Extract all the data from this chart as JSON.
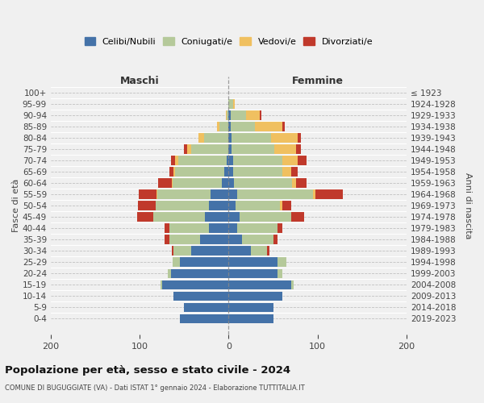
{
  "age_groups": [
    "0-4",
    "5-9",
    "10-14",
    "15-19",
    "20-24",
    "25-29",
    "30-34",
    "35-39",
    "40-44",
    "45-49",
    "50-54",
    "55-59",
    "60-64",
    "65-69",
    "70-74",
    "75-79",
    "80-84",
    "85-89",
    "90-94",
    "95-99",
    "100+"
  ],
  "birth_years": [
    "2019-2023",
    "2014-2018",
    "2009-2013",
    "2004-2008",
    "1999-2003",
    "1994-1998",
    "1989-1993",
    "1984-1988",
    "1979-1983",
    "1974-1978",
    "1969-1973",
    "1964-1968",
    "1959-1963",
    "1954-1958",
    "1949-1953",
    "1944-1948",
    "1939-1943",
    "1934-1938",
    "1929-1933",
    "1924-1928",
    "≤ 1923"
  ],
  "male": {
    "celibi": [
      55,
      50,
      62,
      75,
      65,
      55,
      42,
      32,
      22,
      27,
      22,
      20,
      8,
      5,
      2,
      0,
      0,
      0,
      0,
      0,
      0
    ],
    "coniugati": [
      0,
      0,
      0,
      2,
      3,
      8,
      20,
      35,
      45,
      58,
      60,
      60,
      55,
      55,
      55,
      42,
      28,
      10,
      2,
      0,
      0
    ],
    "vedovi": [
      0,
      0,
      0,
      0,
      0,
      0,
      0,
      0,
      0,
      0,
      0,
      1,
      1,
      2,
      3,
      5,
      6,
      3,
      1,
      0,
      0
    ],
    "divorziati": [
      0,
      0,
      0,
      0,
      0,
      0,
      2,
      5,
      5,
      18,
      20,
      20,
      15,
      5,
      5,
      3,
      0,
      0,
      0,
      0,
      0
    ]
  },
  "female": {
    "nubili": [
      50,
      50,
      60,
      70,
      55,
      55,
      25,
      15,
      10,
      12,
      8,
      10,
      6,
      5,
      5,
      3,
      3,
      2,
      2,
      0,
      0
    ],
    "coniugate": [
      0,
      0,
      0,
      3,
      5,
      10,
      18,
      35,
      45,
      58,
      50,
      85,
      65,
      55,
      55,
      48,
      45,
      28,
      18,
      5,
      0
    ],
    "vedove": [
      0,
      0,
      0,
      0,
      0,
      0,
      0,
      0,
      0,
      0,
      2,
      3,
      5,
      10,
      18,
      25,
      30,
      30,
      15,
      2,
      0
    ],
    "divorziate": [
      0,
      0,
      0,
      0,
      0,
      0,
      3,
      5,
      5,
      15,
      10,
      30,
      12,
      8,
      10,
      5,
      3,
      3,
      2,
      0,
      0
    ]
  },
  "colors": {
    "celibi": "#4472a8",
    "coniugati": "#b5c99a",
    "vedovi": "#f0c060",
    "divorziati": "#c0392b"
  },
  "xlim": [
    -200,
    200
  ],
  "xticks": [
    -200,
    -100,
    0,
    100,
    200
  ],
  "xticklabels": [
    "200",
    "100",
    "0",
    "100",
    "200"
  ],
  "title": "Popolazione per età, sesso e stato civile - 2024",
  "subtitle": "COMUNE DI BUGUGGIATE (VA) - Dati ISTAT 1° gennaio 2024 - Elaborazione TUTTITALIA.IT",
  "ylabel_left": "Fasce di età",
  "ylabel_right": "Anni di nascita",
  "legend_labels": [
    "Celibi/Nubili",
    "Coniugati/e",
    "Vedovi/e",
    "Divorziati/e"
  ],
  "background_color": "#f0f0f0"
}
